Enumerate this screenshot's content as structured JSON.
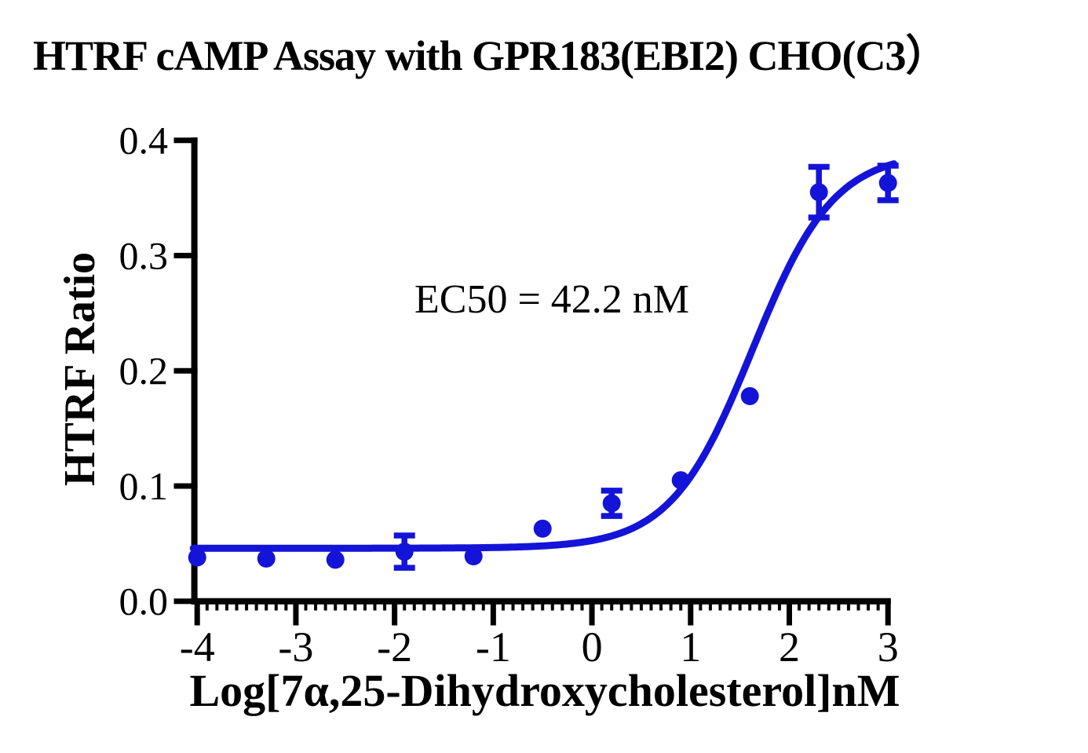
{
  "chart_data": {
    "type": "scatter",
    "title": "HTRF cAMP Assay with GPR183(EBI2) CHO(C3）",
    "xlabel": "Log[7α,25-Dihydroxycholesterol]nM",
    "ylabel": "HTRF Ratio",
    "annotation": "EC50 = 42.2 nM",
    "ec50_nM": 42.2,
    "xlim": [
      -4,
      3.07
    ],
    "ylim": [
      0,
      0.4
    ],
    "grid": false,
    "legend_position": "none",
    "x_ticks": [
      -4,
      -3,
      -2,
      -1,
      0,
      1,
      2,
      3
    ],
    "x_tick_labels": [
      "-4",
      "-3",
      "-2",
      "-1",
      "0",
      "1",
      "2",
      "3"
    ],
    "y_ticks": [
      0,
      0.1,
      0.2,
      0.3,
      0.4
    ],
    "y_tick_labels": [
      "0.0",
      "0.1",
      "0.2",
      "0.3",
      "0.4"
    ],
    "x_minor_tick_step": 0.1,
    "series": [
      {
        "name": "7α,25-Dihydroxycholesterol",
        "color": "#1414d8",
        "marker": "circle",
        "points": [
          {
            "x": -4.0,
            "y": 0.038,
            "err": 0
          },
          {
            "x": -3.3,
            "y": 0.037,
            "err": 0
          },
          {
            "x": -2.6,
            "y": 0.036,
            "err": 0
          },
          {
            "x": -1.9,
            "y": 0.043,
            "err": 0.014
          },
          {
            "x": -1.2,
            "y": 0.039,
            "err": 0
          },
          {
            "x": -0.5,
            "y": 0.063,
            "err": 0
          },
          {
            "x": 0.2,
            "y": 0.085,
            "err": 0.011
          },
          {
            "x": 0.9,
            "y": 0.105,
            "err": 0
          },
          {
            "x": 1.6,
            "y": 0.178,
            "err": 0
          },
          {
            "x": 2.3,
            "y": 0.355,
            "err": 0.022
          },
          {
            "x": 3.0,
            "y": 0.363,
            "err": 0.015
          }
        ]
      }
    ],
    "fit_curve": {
      "model": "4PL",
      "bottom": 0.046,
      "top": 0.39,
      "log_ec50": 1.625,
      "hill": 1.05
    }
  },
  "colors": {
    "axis": "#000000",
    "background": "#ffffff",
    "series_blue": "#1414d8"
  }
}
